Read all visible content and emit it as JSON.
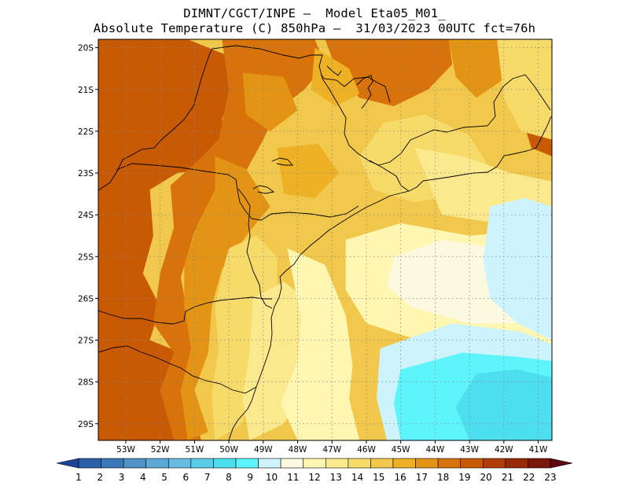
{
  "header": {
    "line1": "DIMNT/CGCT/INPE –  Model Eta05_M01_",
    "line2": "Absolute Temperature (C) 850hPa –  31/03/2023 00UTC fct=76h"
  },
  "map": {
    "lon_range": [
      -53.8,
      -40.6
    ],
    "lat_range": [
      -29.4,
      -19.8
    ],
    "grid": "dotted",
    "lat_ticks": [
      {
        "value": -20,
        "label": "20S"
      },
      {
        "value": -21,
        "label": "21S"
      },
      {
        "value": -22,
        "label": "22S"
      },
      {
        "value": -23,
        "label": "23S"
      },
      {
        "value": -24,
        "label": "24S"
      },
      {
        "value": -25,
        "label": "25S"
      },
      {
        "value": -26,
        "label": "26S"
      },
      {
        "value": -27,
        "label": "27S"
      },
      {
        "value": -28,
        "label": "28S"
      },
      {
        "value": -29,
        "label": "29S"
      }
    ],
    "lon_ticks": [
      {
        "value": -53,
        "label": "53W"
      },
      {
        "value": -52,
        "label": "52W"
      },
      {
        "value": -51,
        "label": "51W"
      },
      {
        "value": -50,
        "label": "50W"
      },
      {
        "value": -49,
        "label": "49W"
      },
      {
        "value": -48,
        "label": "48W"
      },
      {
        "value": -47,
        "label": "47W"
      },
      {
        "value": -46,
        "label": "46W"
      },
      {
        "value": -45,
        "label": "45W"
      },
      {
        "value": -44,
        "label": "44W"
      },
      {
        "value": -43,
        "label": "43W"
      },
      {
        "value": -42,
        "label": "42W"
      },
      {
        "value": -41,
        "label": "41W"
      }
    ],
    "temperature_regions": [
      {
        "level": 21,
        "polygon": [
          [
            -53.0,
            -21.1
          ],
          [
            -52.2,
            -20.9
          ],
          [
            -51.6,
            -21.0
          ],
          [
            -51.3,
            -21.6
          ],
          [
            -51.5,
            -22.1
          ],
          [
            -52.2,
            -22.3
          ],
          [
            -52.9,
            -22.1
          ],
          [
            -53.2,
            -21.6
          ]
        ]
      },
      {
        "level": 20,
        "polygon": [
          [
            -53.5,
            -21.2
          ],
          [
            -52.6,
            -20.5
          ],
          [
            -51.5,
            -20.3
          ],
          [
            -50.9,
            -20.9
          ],
          [
            -50.9,
            -21.8
          ],
          [
            -51.3,
            -22.4
          ],
          [
            -52.4,
            -22.6
          ],
          [
            -53.3,
            -22.3
          ],
          [
            -53.6,
            -21.7
          ]
        ]
      },
      {
        "level": 20,
        "polygon": [
          [
            -53.8,
            -23.4
          ],
          [
            -53.3,
            -23.6
          ],
          [
            -53.1,
            -25.0
          ],
          [
            -53.3,
            -26.2
          ],
          [
            -53.4,
            -27.0
          ],
          [
            -53.8,
            -27.3
          ]
        ]
      },
      {
        "level": 20,
        "polygon": [
          [
            -53.8,
            -27.6
          ],
          [
            -53.2,
            -27.7
          ],
          [
            -53.3,
            -28.6
          ],
          [
            -53.8,
            -28.9
          ]
        ]
      },
      {
        "level": 19,
        "polygon": [
          [
            -53.8,
            -19.8
          ],
          [
            -51.2,
            -19.8
          ],
          [
            -50.0,
            -20.2
          ],
          [
            -49.8,
            -21.0
          ],
          [
            -50.2,
            -21.7
          ],
          [
            -50.0,
            -22.4
          ],
          [
            -50.6,
            -22.9
          ],
          [
            -51.5,
            -23.0
          ],
          [
            -52.3,
            -23.4
          ],
          [
            -52.2,
            -24.5
          ],
          [
            -52.5,
            -25.4
          ],
          [
            -52.0,
            -26.2
          ],
          [
            -52.3,
            -27.0
          ],
          [
            -51.4,
            -27.3
          ],
          [
            -51.8,
            -28.2
          ],
          [
            -51.4,
            -29.4
          ],
          [
            -53.8,
            -29.4
          ]
        ]
      },
      {
        "level": 19,
        "polygon": [
          [
            -46.2,
            -19.8
          ],
          [
            -45.0,
            -19.8
          ],
          [
            -44.5,
            -20.4
          ],
          [
            -44.8,
            -20.9
          ],
          [
            -45.6,
            -20.9
          ],
          [
            -46.3,
            -20.5
          ]
        ]
      },
      {
        "level": 19,
        "polygon": [
          [
            -41.5,
            -21.6
          ],
          [
            -40.6,
            -21.2
          ],
          [
            -40.6,
            -22.6
          ],
          [
            -41.2,
            -22.4
          ]
        ]
      },
      {
        "level": 18,
        "polygon": [
          [
            -50.2,
            -19.8
          ],
          [
            -47.5,
            -19.8
          ],
          [
            -47.2,
            -20.4
          ],
          [
            -47.8,
            -21.0
          ],
          [
            -48.6,
            -21.5
          ],
          [
            -49.0,
            -22.2
          ],
          [
            -49.6,
            -23.1
          ],
          [
            -50.3,
            -23.6
          ],
          [
            -51.0,
            -24.4
          ],
          [
            -51.4,
            -25.5
          ],
          [
            -51.2,
            -26.4
          ],
          [
            -51.0,
            -27.2
          ],
          [
            -51.3,
            -28.1
          ],
          [
            -50.8,
            -29.4
          ],
          [
            -51.6,
            -29.4
          ],
          [
            -52.0,
            -28.2
          ],
          [
            -51.6,
            -27.3
          ],
          [
            -52.2,
            -26.6
          ],
          [
            -52.0,
            -25.4
          ],
          [
            -51.6,
            -24.3
          ],
          [
            -51.7,
            -23.3
          ],
          [
            -50.9,
            -22.7
          ],
          [
            -50.3,
            -22.2
          ],
          [
            -50.0,
            -21.0
          ]
        ]
      },
      {
        "level": 18,
        "polygon": [
          [
            -47.2,
            -19.8
          ],
          [
            -43.6,
            -19.8
          ],
          [
            -43.5,
            -20.4
          ],
          [
            -44.2,
            -21.0
          ],
          [
            -45.2,
            -21.4
          ],
          [
            -46.2,
            -21.2
          ],
          [
            -46.8,
            -20.7
          ]
        ]
      },
      {
        "level": 17,
        "polygon": [
          [
            -50.4,
            -22.6
          ],
          [
            -49.5,
            -22.9
          ],
          [
            -48.8,
            -23.8
          ],
          [
            -49.4,
            -24.4
          ],
          [
            -50.2,
            -25.3
          ],
          [
            -50.5,
            -26.2
          ],
          [
            -50.6,
            -27.3
          ],
          [
            -51.0,
            -28.2
          ],
          [
            -50.6,
            -29.2
          ],
          [
            -51.2,
            -29.4
          ],
          [
            -51.4,
            -28.2
          ],
          [
            -51.1,
            -27.2
          ],
          [
            -51.3,
            -26.2
          ],
          [
            -51.3,
            -25.2
          ],
          [
            -50.9,
            -24.2
          ],
          [
            -50.4,
            -23.4
          ]
        ]
      },
      {
        "level": 17,
        "polygon": [
          [
            -49.6,
            -20.6
          ],
          [
            -48.4,
            -20.7
          ],
          [
            -48.0,
            -21.5
          ],
          [
            -48.8,
            -22.0
          ],
          [
            -49.5,
            -21.6
          ]
        ]
      },
      {
        "level": 17,
        "polygon": [
          [
            -43.6,
            -19.8
          ],
          [
            -40.8,
            -19.8
          ],
          [
            -41.0,
            -20.4
          ],
          [
            -41.9,
            -20.7
          ],
          [
            -42.8,
            -21.2
          ],
          [
            -43.4,
            -20.7
          ]
        ]
      },
      {
        "level": 16,
        "polygon": [
          [
            -48.6,
            -22.4
          ],
          [
            -47.4,
            -22.3
          ],
          [
            -46.8,
            -23.0
          ],
          [
            -47.5,
            -23.6
          ],
          [
            -48.4,
            -23.5
          ]
        ]
      },
      {
        "level": 16,
        "polygon": [
          [
            -47.5,
            -20.0
          ],
          [
            -46.5,
            -20.5
          ],
          [
            -46.2,
            -21.1
          ],
          [
            -46.9,
            -21.4
          ],
          [
            -47.6,
            -21.0
          ]
        ]
      },
      {
        "level": 14,
        "polygon": [
          [
            -50.0,
            -24.8
          ],
          [
            -49.2,
            -24.5
          ],
          [
            -48.6,
            -25.0
          ],
          [
            -48.6,
            -26.0
          ],
          [
            -49.1,
            -27.0
          ],
          [
            -49.3,
            -28.0
          ],
          [
            -49.6,
            -29.0
          ],
          [
            -50.4,
            -29.4
          ],
          [
            -50.5,
            -28.3
          ],
          [
            -50.3,
            -27.2
          ],
          [
            -50.4,
            -26.2
          ],
          [
            -50.2,
            -25.4
          ]
        ]
      },
      {
        "level": 14,
        "polygon": [
          [
            -45.5,
            -21.8
          ],
          [
            -44.3,
            -21.6
          ],
          [
            -43.0,
            -22.1
          ],
          [
            -42.4,
            -22.9
          ],
          [
            -43.2,
            -23.5
          ],
          [
            -44.6,
            -23.7
          ],
          [
            -45.8,
            -23.4
          ],
          [
            -46.2,
            -22.6
          ]
        ]
      },
      {
        "level": 14,
        "polygon": [
          [
            -42.2,
            -19.8
          ],
          [
            -40.6,
            -19.8
          ],
          [
            -40.6,
            -22.2
          ],
          [
            -41.5,
            -22.0
          ],
          [
            -42.0,
            -21.2
          ]
        ]
      },
      {
        "level": 13,
        "polygon": [
          [
            -49.3,
            -26.0
          ],
          [
            -48.4,
            -25.6
          ],
          [
            -47.5,
            -26.2
          ],
          [
            -47.3,
            -27.2
          ],
          [
            -47.8,
            -28.2
          ],
          [
            -48.4,
            -29.0
          ],
          [
            -49.4,
            -29.4
          ],
          [
            -49.6,
            -28.4
          ],
          [
            -49.4,
            -27.3
          ]
        ]
      },
      {
        "level": 13,
        "polygon": [
          [
            -44.6,
            -22.4
          ],
          [
            -43.2,
            -22.6
          ],
          [
            -41.8,
            -23.0
          ],
          [
            -40.6,
            -23.2
          ],
          [
            -40.6,
            -24.0
          ],
          [
            -42.2,
            -24.2
          ],
          [
            -43.8,
            -24.0
          ]
        ]
      },
      {
        "level": 12,
        "polygon": [
          [
            -48.3,
            -24.8
          ],
          [
            -47.2,
            -25.2
          ],
          [
            -46.6,
            -26.4
          ],
          [
            -46.4,
            -27.6
          ],
          [
            -46.5,
            -28.4
          ],
          [
            -46.2,
            -29.4
          ],
          [
            -48.0,
            -29.4
          ],
          [
            -48.5,
            -28.5
          ],
          [
            -48.0,
            -27.5
          ],
          [
            -47.9,
            -26.5
          ]
        ]
      },
      {
        "level": 12,
        "polygon": [
          [
            -46.6,
            -24.6
          ],
          [
            -45.0,
            -24.2
          ],
          [
            -43.0,
            -24.5
          ],
          [
            -41.5,
            -24.4
          ],
          [
            -40.6,
            -24.8
          ],
          [
            -40.6,
            -27.4
          ],
          [
            -42.5,
            -27.2
          ],
          [
            -44.5,
            -27.0
          ],
          [
            -46.0,
            -26.6
          ],
          [
            -46.6,
            -25.8
          ]
        ]
      },
      {
        "level": 11,
        "polygon": [
          [
            -45.2,
            -25.0
          ],
          [
            -43.8,
            -24.6
          ],
          [
            -42.2,
            -24.8
          ],
          [
            -41.0,
            -25.6
          ],
          [
            -41.2,
            -26.6
          ],
          [
            -43.0,
            -26.6
          ],
          [
            -44.7,
            -26.2
          ],
          [
            -45.4,
            -25.7
          ]
        ]
      },
      {
        "level": 10,
        "polygon": [
          [
            -42.4,
            -23.8
          ],
          [
            -41.4,
            -23.6
          ],
          [
            -40.6,
            -23.8
          ],
          [
            -40.6,
            -27.0
          ],
          [
            -41.6,
            -26.6
          ],
          [
            -42.4,
            -26.0
          ],
          [
            -42.6,
            -25.1
          ]
        ]
      },
      {
        "level": 10,
        "polygon": [
          [
            -45.6,
            -27.2
          ],
          [
            -43.5,
            -26.6
          ],
          [
            -41.5,
            -26.8
          ],
          [
            -40.6,
            -27.1
          ],
          [
            -40.6,
            -29.4
          ],
          [
            -45.4,
            -29.4
          ],
          [
            -45.7,
            -28.4
          ]
        ]
      },
      {
        "level": 9,
        "polygon": [
          [
            -45.0,
            -27.7
          ],
          [
            -43.2,
            -27.3
          ],
          [
            -41.6,
            -27.4
          ],
          [
            -40.6,
            -27.5
          ],
          [
            -40.6,
            -29.4
          ],
          [
            -45.0,
            -29.4
          ],
          [
            -45.2,
            -28.5
          ]
        ]
      },
      {
        "level": 8,
        "polygon": [
          [
            -42.8,
            -27.8
          ],
          [
            -41.6,
            -27.7
          ],
          [
            -40.6,
            -27.9
          ],
          [
            -40.6,
            -29.4
          ],
          [
            -43.0,
            -29.4
          ],
          [
            -43.4,
            -28.6
          ]
        ]
      }
    ]
  },
  "colorbar": {
    "labels": [
      "1",
      "2",
      "3",
      "4",
      "5",
      "6",
      "7",
      "8",
      "9",
      "10",
      "11",
      "12",
      "13",
      "14",
      "15",
      "16",
      "17",
      "18",
      "19",
      "20",
      "21",
      "22",
      "23"
    ],
    "colors": [
      "#1f4497",
      "#2a5fa8",
      "#3b78b7",
      "#4e92c6",
      "#5ca9d5",
      "#66bde1",
      "#59cde8",
      "#4ddff0",
      "#5df5fb",
      "#cdf3fc",
      "#fdf8e0",
      "#fef6b1",
      "#fbe98d",
      "#f6da6a",
      "#f1c84b",
      "#eeb125",
      "#e39414",
      "#d8720a",
      "#c85a06",
      "#b03d07",
      "#982a09",
      "#7a170d",
      "#5c0712"
    ]
  }
}
